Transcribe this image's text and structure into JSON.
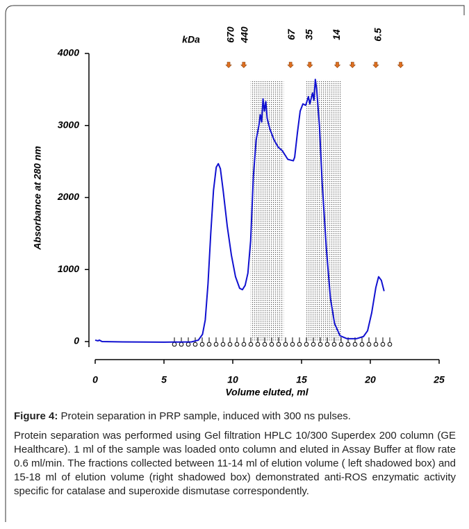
{
  "chart_data": {
    "type": "line",
    "y_label": "Absorbance at 280 nm",
    "x_label": "Volume eluted, ml",
    "xlim": [
      0,
      25
    ],
    "xticks": [
      0,
      5,
      10,
      15,
      20,
      25
    ],
    "ylim": [
      0,
      4000
    ],
    "yticks": [
      0,
      1000,
      2000,
      3000,
      4000
    ],
    "series": [
      {
        "color": "#1010d0",
        "x": [
          0,
          0.2,
          0.3,
          0.5,
          2,
          5,
          7,
          7.5,
          7.8,
          8,
          8.2,
          8.4,
          8.6,
          8.8,
          8.95,
          9.1,
          9.3,
          9.6,
          9.9,
          10.2,
          10.5,
          10.7,
          10.9,
          11.1,
          11.3,
          11.5,
          11.7,
          11.9,
          12.0,
          12.1,
          12.2,
          12.3,
          12.4,
          12.5,
          12.7,
          13.0,
          13.3,
          13.6,
          14.0,
          14.2,
          14.4,
          14.5,
          14.7,
          14.9,
          15.1,
          15.3,
          15.5,
          15.6,
          15.8,
          15.9,
          16.0,
          16.1,
          16.3,
          16.5,
          16.8,
          17.1,
          17.4,
          17.8,
          18.3,
          19,
          19.5,
          19.8,
          20.1,
          20.4,
          20.6,
          20.8,
          21.0
        ],
        "values": [
          20,
          10,
          20,
          0,
          -5,
          -8,
          -5,
          20,
          100,
          300,
          800,
          1500,
          2100,
          2420,
          2470,
          2400,
          2100,
          1600,
          1200,
          900,
          740,
          720,
          780,
          950,
          1400,
          2300,
          2800,
          3000,
          3150,
          3050,
          3370,
          3200,
          3330,
          3100,
          2950,
          2800,
          2700,
          2650,
          2530,
          2520,
          2510,
          2560,
          2900,
          3200,
          3300,
          3280,
          3400,
          3300,
          3450,
          3350,
          3640,
          3500,
          3000,
          2200,
          1300,
          600,
          250,
          80,
          40,
          40,
          70,
          150,
          400,
          750,
          900,
          850,
          700
        ]
      }
    ],
    "shaded_regions": [
      {
        "x": [
          11.3,
          13.7
        ],
        "top": 3630
      },
      {
        "x": [
          15.3,
          17.9
        ],
        "top": 3630
      }
    ],
    "markers": {
      "label": "kDa",
      "names": [
        "670",
        "440",
        "67",
        "35",
        "14",
        "6.5"
      ],
      "name_x": [
        9.9,
        10.9,
        14.3,
        15.6,
        17.6,
        20.6
      ],
      "standard_x": [
        9.7,
        10.8,
        14.2,
        15.6,
        17.6,
        18.7,
        20.4,
        22.2
      ],
      "standard_y": 3840,
      "color": "#e07020"
    }
  },
  "caption": {
    "label": "Figure 4:",
    "title": " Protein separation in PRP sample, induced with 300 ns pulses.",
    "text": "Protein separation was performed using Gel filtration HPLC 10/300 Superdex 200 column (GE Healthcare). 1 ml of the sample was loaded onto column and eluted in Assay Buffer at flow rate 0.6 ml/min.  The fractions collected between 11-14 ml of elution volume ( left shadowed box)  and 15-18 ml of elution volume (right shadowed box) demonstrated anti-ROS enzymatic activity specific for catalase and superoxide dismutase correspondently."
  }
}
